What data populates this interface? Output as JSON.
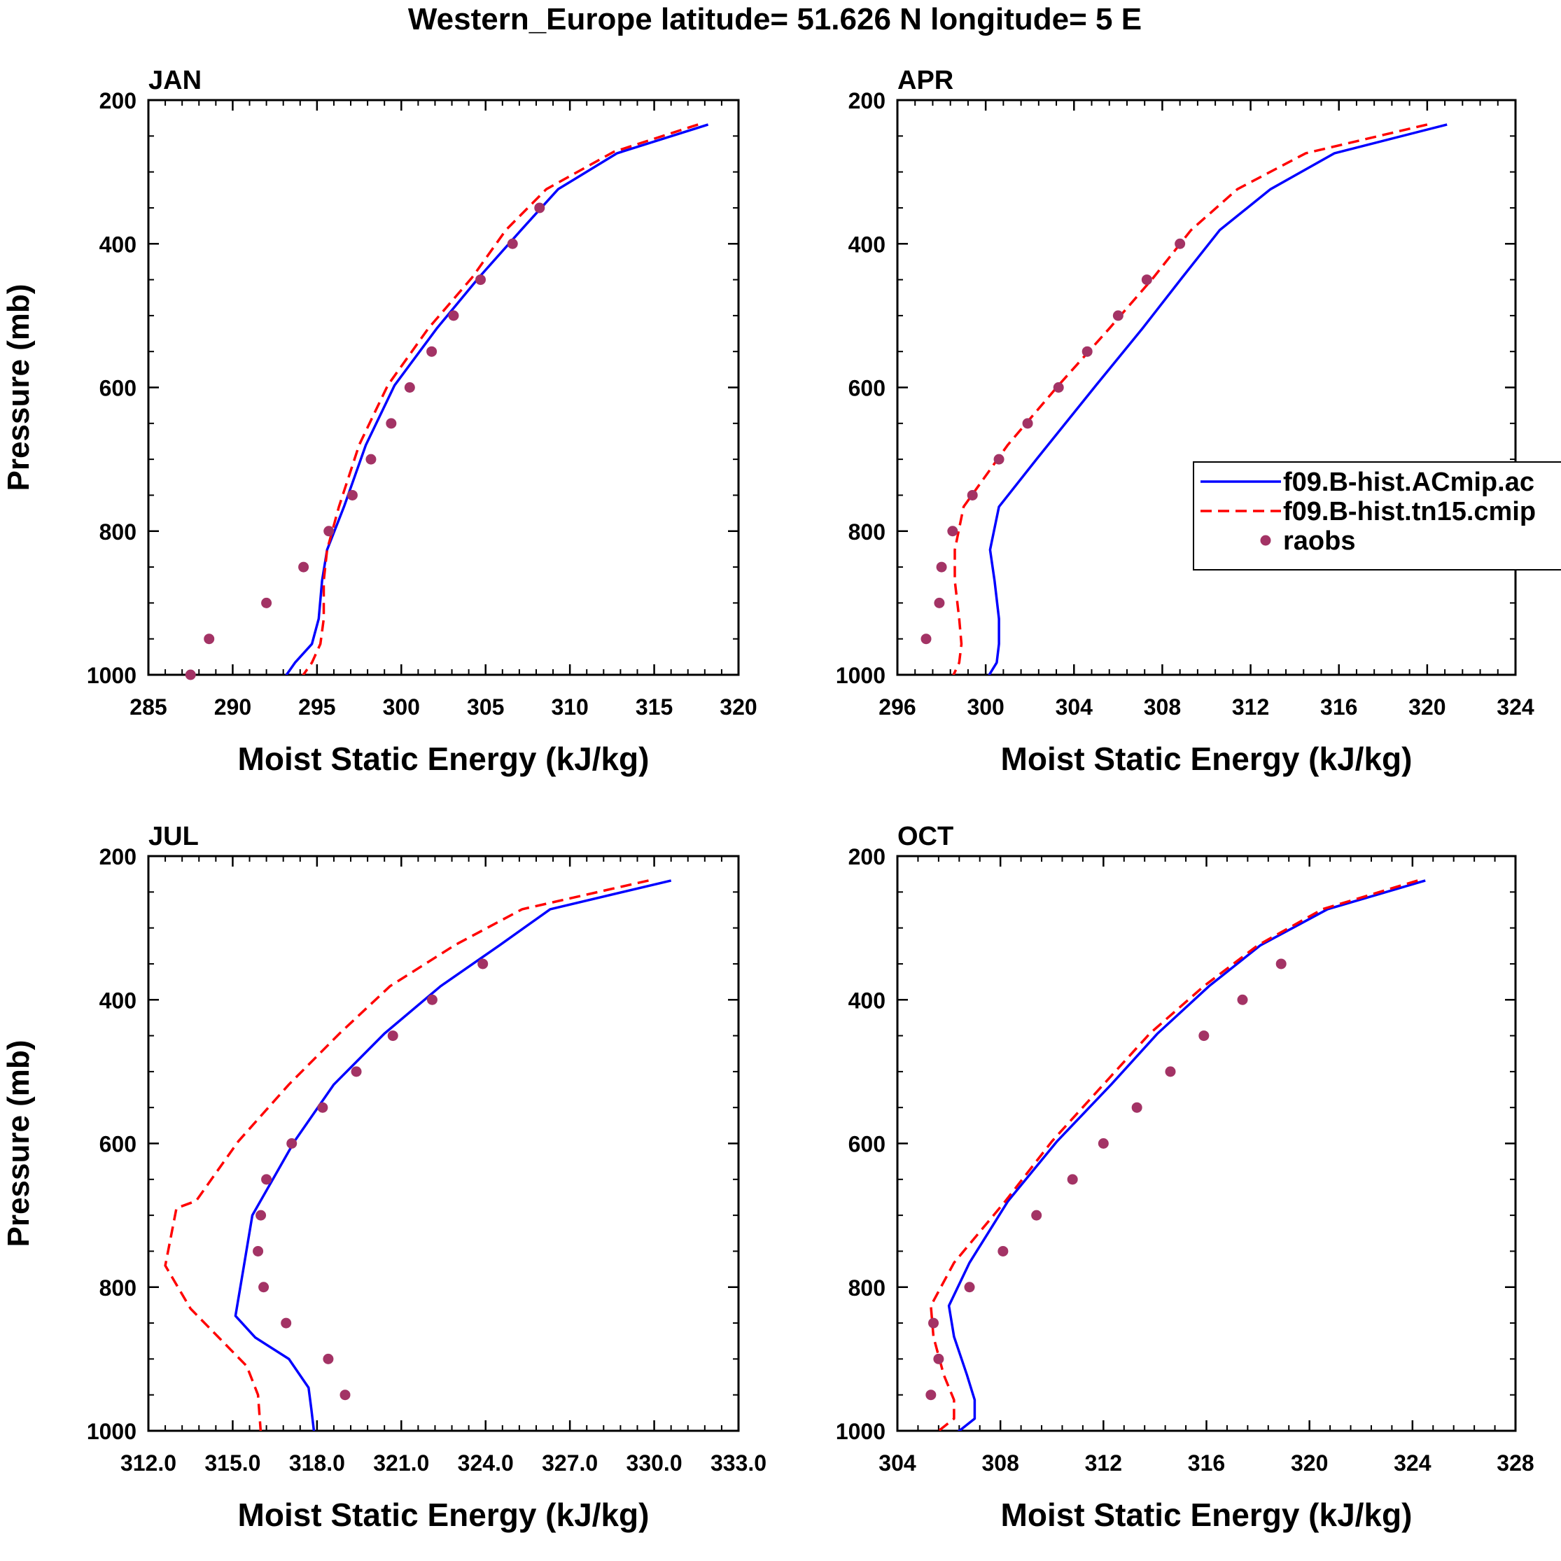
{
  "figure_title": "Western_Europe  latitude= 51.626 N longitude= 5 E",
  "legend": {
    "entries": [
      {
        "label": "f09.B-hist.ACmip.ac",
        "style": "solid",
        "color": "#0000ff"
      },
      {
        "label": "f09.B-hist.tn15.cmip",
        "style": "dashed",
        "color": "#ff0000"
      },
      {
        "label": "raobs",
        "style": "marker",
        "color": "#a33365"
      }
    ]
  },
  "chart_data": [
    {
      "type": "line",
      "title": "JAN",
      "xlabel": "Moist Static Energy (kJ/kg)",
      "ylabel": "Pressure (mb)",
      "xlim": [
        285,
        320
      ],
      "ylim": [
        1000,
        200
      ],
      "xticks": [
        285,
        290,
        295,
        300,
        305,
        310,
        315,
        320
      ],
      "xtick_labels": [
        "285",
        "290",
        "295",
        "300",
        "305",
        "310",
        "315",
        "320"
      ],
      "yticks": [
        200,
        400,
        600,
        800,
        1000
      ],
      "ytick_labels": [
        "200",
        "400",
        "600",
        "800",
        "1000"
      ],
      "series": [
        {
          "name": "f09.B-hist.ACmip.ac",
          "style": "solid",
          "color": "#0000ff",
          "x": [
            318.2,
            312.8,
            309.3,
            307.1,
            304.6,
            302.1,
            299.6,
            297.9,
            296.6,
            295.6,
            295.3,
            295.1,
            294.7,
            293.7,
            293.1
          ],
          "y": [
            234,
            274,
            324,
            381,
            447,
            518,
            597,
            680,
            766,
            826,
            869,
            922,
            957,
            983,
            1003
          ]
        },
        {
          "name": "f09.B-hist.tn15.cmip",
          "style": "dashed",
          "color": "#ff0000",
          "x": [
            317.6,
            312.6,
            308.6,
            306.2,
            304.2,
            301.6,
            299.2,
            297.5,
            296.3,
            295.6,
            295.4,
            295.4,
            295.2,
            294.7,
            294.1
          ],
          "y": [
            234,
            272,
            324,
            381,
            447,
            518,
            597,
            680,
            766,
            826,
            869,
            922,
            957,
            983,
            1003
          ]
        },
        {
          "name": "raobs",
          "style": "marker",
          "color": "#a33365",
          "x": [
            308.2,
            306.6,
            304.7,
            303.1,
            301.8,
            300.5,
            299.4,
            298.2,
            297.1,
            295.7,
            294.2,
            292.0,
            288.6,
            287.5
          ],
          "y": [
            350,
            400,
            450,
            500,
            550,
            600,
            650,
            700,
            750,
            800,
            850,
            900,
            950,
            1000
          ]
        }
      ]
    },
    {
      "type": "line",
      "title": "APR",
      "xlabel": "Moist Static Energy (kJ/kg)",
      "ylabel": "",
      "xlim": [
        296,
        324
      ],
      "ylim": [
        1000,
        200
      ],
      "xticks": [
        296,
        300,
        304,
        308,
        312,
        316,
        320,
        324
      ],
      "xtick_labels": [
        "296",
        "300",
        "304",
        "308",
        "312",
        "316",
        "320",
        "324"
      ],
      "yticks": [
        200,
        400,
        600,
        800,
        1000
      ],
      "ytick_labels": [
        "200",
        "400",
        "600",
        "800",
        "1000"
      ],
      "series": [
        {
          "name": "f09.B-hist.ACmip.ac",
          "style": "solid",
          "color": "#0000ff",
          "x": [
            320.9,
            315.8,
            312.9,
            310.6,
            308.9,
            307.1,
            305.0,
            302.3,
            300.6,
            300.2,
            300.4,
            300.6,
            300.6,
            300.5,
            300.1
          ],
          "y": [
            234,
            274,
            324,
            381,
            447,
            518,
            597,
            700,
            766,
            826,
            869,
            922,
            957,
            983,
            1003
          ]
        },
        {
          "name": "f09.B-hist.tn15.cmip",
          "style": "dashed",
          "color": "#ff0000",
          "x": [
            320.0,
            314.5,
            311.4,
            309.3,
            307.6,
            305.6,
            303.3,
            301.0,
            299.0,
            298.6,
            298.6,
            298.8,
            298.9,
            298.8,
            298.5
          ],
          "y": [
            234,
            274,
            324,
            381,
            447,
            518,
            597,
            680,
            766,
            826,
            869,
            922,
            957,
            983,
            1003
          ]
        },
        {
          "name": "raobs",
          "style": "marker",
          "color": "#a33365",
          "x": [
            308.8,
            307.3,
            306.0,
            304.6,
            303.3,
            301.9,
            300.6,
            299.4,
            298.5,
            298.0,
            297.9,
            297.3
          ],
          "y": [
            400,
            450,
            500,
            550,
            600,
            650,
            700,
            750,
            800,
            850,
            900,
            950
          ]
        }
      ]
    },
    {
      "type": "line",
      "title": "JUL",
      "xlabel": "Moist Static Energy (kJ/kg)",
      "ylabel": "Pressure (mb)",
      "xlim": [
        312,
        333
      ],
      "ylim": [
        1000,
        200
      ],
      "xticks": [
        312,
        315,
        318,
        321,
        324,
        327,
        330,
        333
      ],
      "xtick_labels": [
        "312.0",
        "315.0",
        "318.0",
        "321.0",
        "324.0",
        "327.0",
        "330.0",
        "333.0"
      ],
      "yticks": [
        200,
        400,
        600,
        800,
        1000
      ],
      "ytick_labels": [
        "200",
        "400",
        "600",
        "800",
        "1000"
      ],
      "series": [
        {
          "name": "f09.B-hist.ACmip.ac",
          "style": "solid",
          "color": "#0000ff",
          "x": [
            330.6,
            326.3,
            324.5,
            322.4,
            320.4,
            318.6,
            317.2,
            315.7,
            315.4,
            315.1,
            315.8,
            317.0,
            317.7,
            317.8,
            317.9
          ],
          "y": [
            234,
            274,
            324,
            381,
            447,
            518,
            597,
            700,
            770,
            840,
            870,
            900,
            940,
            970,
            1003
          ]
        },
        {
          "name": "f09.B-hist.tn15.cmip",
          "style": "dashed",
          "color": "#ff0000",
          "x": [
            329.8,
            325.3,
            322.9,
            320.6,
            318.8,
            317.0,
            315.2,
            313.7,
            313.0,
            312.6,
            313.5,
            314.5,
            315.5,
            315.9,
            316.0
          ],
          "y": [
            234,
            274,
            324,
            381,
            447,
            518,
            597,
            680,
            690,
            770,
            830,
            870,
            910,
            950,
            1003
          ]
        },
        {
          "name": "raobs",
          "style": "marker",
          "color": "#a33365",
          "x": [
            323.9,
            322.1,
            320.7,
            319.4,
            318.2,
            317.1,
            316.2,
            316.0,
            315.9,
            316.1,
            316.9,
            318.4,
            319.0
          ],
          "y": [
            350,
            400,
            450,
            500,
            550,
            600,
            650,
            700,
            750,
            800,
            850,
            900,
            950
          ]
        }
      ]
    },
    {
      "type": "line",
      "title": "OCT",
      "xlabel": "Moist Static Energy (kJ/kg)",
      "ylabel": "",
      "xlim": [
        304,
        328
      ],
      "ylim": [
        1000,
        200
      ],
      "xticks": [
        304,
        308,
        312,
        316,
        320,
        324,
        328
      ],
      "xtick_labels": [
        "304",
        "308",
        "312",
        "316",
        "320",
        "324",
        "328"
      ],
      "yticks": [
        200,
        400,
        600,
        800,
        1000
      ],
      "ytick_labels": [
        "200",
        "400",
        "600",
        "800",
        "1000"
      ],
      "series": [
        {
          "name": "f09.B-hist.ACmip.ac",
          "style": "solid",
          "color": "#0000ff",
          "x": [
            324.5,
            320.7,
            318.1,
            316.1,
            314.1,
            312.3,
            310.2,
            308.3,
            306.8,
            306.0,
            306.2,
            306.7,
            307.0,
            307.0,
            306.3
          ],
          "y": [
            234,
            274,
            324,
            381,
            447,
            518,
            597,
            680,
            766,
            826,
            869,
            922,
            957,
            983,
            1003
          ]
        },
        {
          "name": "f09.B-hist.tn15.cmip",
          "style": "dashed",
          "color": "#ff0000",
          "x": [
            324.2,
            320.5,
            318.0,
            315.9,
            313.8,
            312.0,
            310.0,
            308.2,
            306.2,
            305.3,
            305.4,
            305.8,
            306.2,
            306.2,
            305.5
          ],
          "y": [
            234,
            274,
            324,
            381,
            447,
            518,
            597,
            680,
            766,
            826,
            869,
            922,
            957,
            983,
            1003
          ]
        },
        {
          "name": "raobs",
          "style": "marker",
          "color": "#a33365",
          "x": [
            318.9,
            317.4,
            315.9,
            314.6,
            313.3,
            312.0,
            310.8,
            309.4,
            308.1,
            306.8,
            305.4,
            305.6,
            305.3
          ],
          "y": [
            350,
            400,
            450,
            500,
            550,
            600,
            650,
            700,
            750,
            800,
            850,
            900,
            950
          ]
        }
      ]
    }
  ]
}
